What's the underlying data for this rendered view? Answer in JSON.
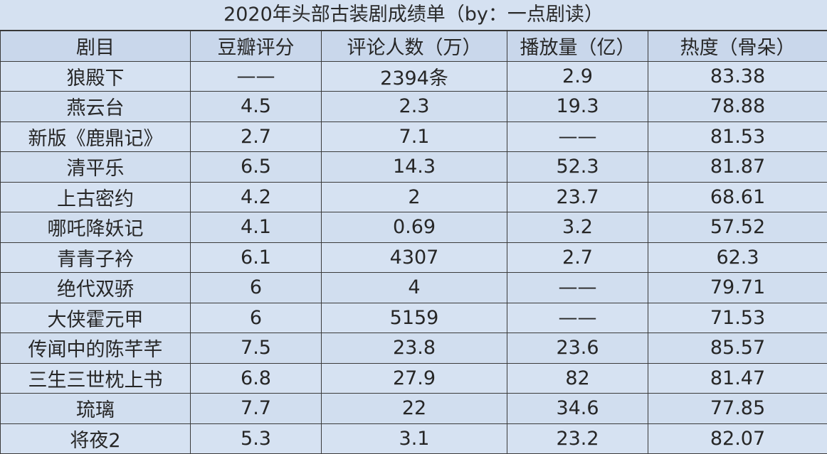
{
  "title": "2020年头部古装剧成绩单（by：一点剧读）",
  "columns": [
    "剧目",
    "豆瓣评分",
    "评论人数（万）",
    "播放量（亿）",
    "热度（骨朵）"
  ],
  "rows": [
    [
      "狼殿下",
      "——",
      "2394条",
      "2.9",
      "83.38"
    ],
    [
      "燕云台",
      "4.5",
      "2.3",
      "19.3",
      "78.88"
    ],
    [
      "新版《鹿鼎记》",
      "2.7",
      "7.1",
      "——",
      "81.53"
    ],
    [
      "清平乐",
      "6.5",
      "14.3",
      "52.3",
      "81.87"
    ],
    [
      "上古密约",
      "4.2",
      "2",
      "23.7",
      "68.61"
    ],
    [
      "哪吒降妖记",
      "4.1",
      "0.69",
      "3.2",
      "57.52"
    ],
    [
      "青青子衿",
      "6.1",
      "4307",
      "2.7",
      "62.3"
    ],
    [
      "绝代双骄",
      "6",
      "4",
      "——",
      "79.71"
    ],
    [
      "大侠霍元甲",
      "6",
      "5159",
      "——",
      "71.53"
    ],
    [
      "传闻中的陈芊芊",
      "7.5",
      "23.8",
      "23.6",
      "85.57"
    ],
    [
      "三生三世枕上书",
      "6.8",
      "27.9",
      "82",
      "81.47"
    ],
    [
      "琉璃",
      "7.7",
      "22",
      "34.6",
      "77.85"
    ],
    [
      "将夜2",
      "5.3",
      "3.1",
      "23.2",
      "82.07"
    ]
  ]
}
